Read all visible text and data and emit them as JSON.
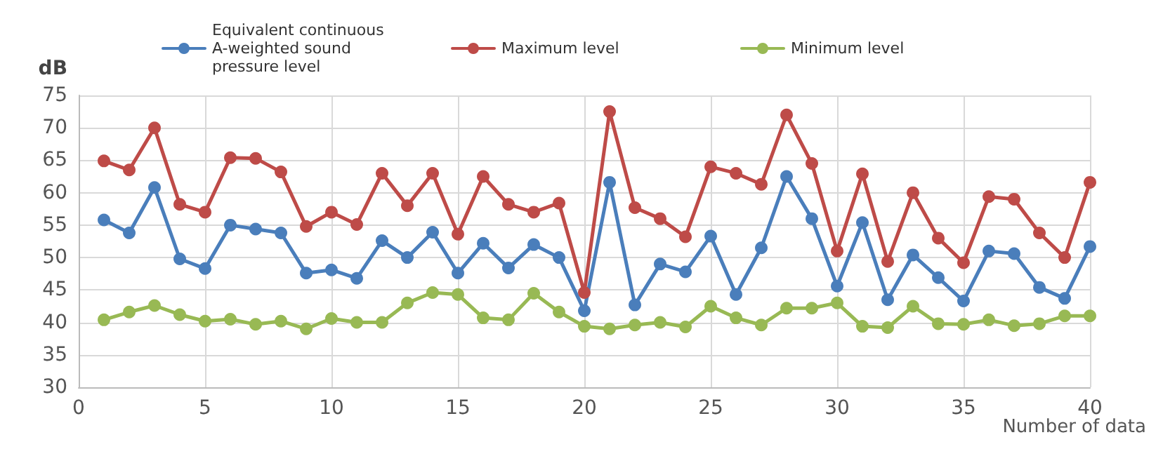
{
  "chart_data": {
    "type": "line",
    "ylabel": "dB",
    "xlabel": "Number of data",
    "x": [
      1,
      2,
      3,
      4,
      5,
      6,
      7,
      8,
      9,
      10,
      11,
      12,
      13,
      14,
      15,
      16,
      17,
      18,
      19,
      20,
      21,
      22,
      23,
      24,
      25,
      26,
      27,
      28,
      29,
      30,
      31,
      32,
      33,
      34,
      35,
      36,
      37,
      38,
      39,
      40
    ],
    "series": [
      {
        "name": "Equivalent continuous A-weighted sound pressure level",
        "color": "#4a7ebb",
        "values": [
          55.8,
          53.8,
          60.8,
          49.8,
          48.3,
          55,
          54.4,
          53.8,
          47.6,
          48.1,
          46.8,
          52.6,
          50,
          53.9,
          47.6,
          52.2,
          48.4,
          52,
          50,
          41.8,
          61.6,
          42.7,
          49,
          47.8,
          53.3,
          44.3,
          51.5,
          62.5,
          56,
          45.6,
          55.4,
          43.5,
          50.4,
          46.9,
          43.3,
          51,
          50.6,
          45.4,
          43.7,
          51.7
        ]
      },
      {
        "name": "Maximum level",
        "color": "#be4b48",
        "values": [
          64.9,
          63.5,
          70,
          58.2,
          57,
          65.4,
          65.3,
          63.2,
          54.8,
          57,
          55.1,
          63,
          58,
          63,
          53.6,
          62.5,
          58.2,
          57,
          58.4,
          44.6,
          72.5,
          57.7,
          56,
          53.2,
          64,
          63,
          61.3,
          72,
          64.5,
          51,
          62.9,
          49.4,
          60,
          53,
          49.2,
          59.4,
          59,
          53.8,
          50,
          61.6
        ]
      },
      {
        "name": "Minimum level",
        "color": "#98b954",
        "values": [
          40.4,
          41.6,
          42.6,
          41.2,
          40.2,
          40.5,
          39.7,
          40.2,
          39,
          40.6,
          40,
          40,
          43,
          44.6,
          44.3,
          40.7,
          40.4,
          44.5,
          41.6,
          39.4,
          39,
          39.6,
          40,
          39.3,
          42.5,
          40.7,
          39.6,
          42.2,
          42.2,
          43,
          39.4,
          39.2,
          42.5,
          39.8,
          39.7,
          40.4,
          39.5,
          39.8,
          41,
          41
        ]
      }
    ],
    "xlim": [
      0,
      40
    ],
    "xticks": [
      0,
      5,
      10,
      15,
      20,
      25,
      30,
      35,
      40
    ],
    "ylim": [
      30,
      75
    ],
    "yticks": [
      30,
      35,
      40,
      45,
      50,
      55,
      60,
      65,
      70,
      75
    ],
    "grid": true,
    "legend": "top",
    "marker": "circle",
    "line_style": "solid"
  }
}
